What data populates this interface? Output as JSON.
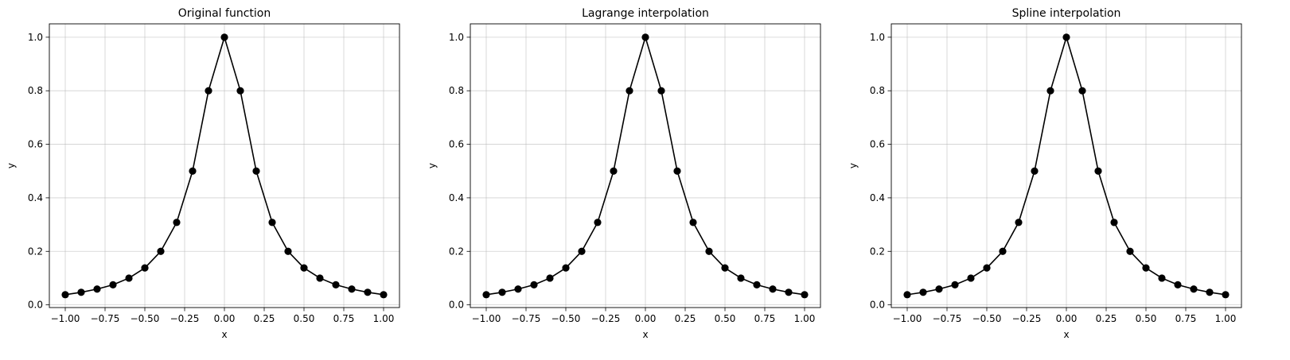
{
  "chart_data": [
    {
      "type": "line",
      "title": "Original function",
      "xlabel": "x",
      "ylabel": "y",
      "xlim": [
        -1.1,
        1.1
      ],
      "ylim": [
        -0.01,
        1.05
      ],
      "xticks": [
        -1.0,
        -0.75,
        -0.5,
        -0.25,
        0.0,
        0.25,
        0.5,
        0.75,
        1.0
      ],
      "xtick_labels": [
        "−1.00",
        "−0.75",
        "−0.50",
        "−0.25",
        "0.00",
        "0.25",
        "0.50",
        "0.75",
        "1.00"
      ],
      "yticks": [
        0.0,
        0.2,
        0.4,
        0.6,
        0.8,
        1.0
      ],
      "ytick_labels": [
        "0.0",
        "0.2",
        "0.4",
        "0.6",
        "0.8",
        "1.0"
      ],
      "grid": true,
      "line_color": "#000000",
      "marker": "circle",
      "x": [
        -1.0,
        -0.9,
        -0.8,
        -0.7,
        -0.6,
        -0.5,
        -0.4,
        -0.3,
        -0.2,
        -0.1,
        0.0,
        0.1,
        0.2,
        0.3,
        0.4,
        0.5,
        0.6,
        0.7,
        0.8,
        0.9,
        1.0
      ],
      "y": [
        0.038,
        0.047,
        0.059,
        0.075,
        0.1,
        0.138,
        0.2,
        0.308,
        0.5,
        0.8,
        1.0,
        0.8,
        0.5,
        0.308,
        0.2,
        0.138,
        0.1,
        0.075,
        0.059,
        0.047,
        0.038
      ]
    },
    {
      "type": "line",
      "title": "Lagrange interpolation",
      "xlabel": "x",
      "ylabel": "y",
      "xlim": [
        -1.1,
        1.1
      ],
      "ylim": [
        -0.01,
        1.05
      ],
      "xticks": [
        -1.0,
        -0.75,
        -0.5,
        -0.25,
        0.0,
        0.25,
        0.5,
        0.75,
        1.0
      ],
      "xtick_labels": [
        "−1.00",
        "−0.75",
        "−0.50",
        "−0.25",
        "0.00",
        "0.25",
        "0.50",
        "0.75",
        "1.00"
      ],
      "yticks": [
        0.0,
        0.2,
        0.4,
        0.6,
        0.8,
        1.0
      ],
      "ytick_labels": [
        "0.0",
        "0.2",
        "0.4",
        "0.6",
        "0.8",
        "1.0"
      ],
      "grid": true,
      "line_color": "#000000",
      "marker": "circle",
      "x": [
        -1.0,
        -0.9,
        -0.8,
        -0.7,
        -0.6,
        -0.5,
        -0.4,
        -0.3,
        -0.2,
        -0.1,
        0.0,
        0.1,
        0.2,
        0.3,
        0.4,
        0.5,
        0.6,
        0.7,
        0.8,
        0.9,
        1.0
      ],
      "y": [
        0.038,
        0.047,
        0.059,
        0.075,
        0.1,
        0.138,
        0.2,
        0.308,
        0.5,
        0.8,
        1.0,
        0.8,
        0.5,
        0.308,
        0.2,
        0.138,
        0.1,
        0.075,
        0.059,
        0.047,
        0.038
      ]
    },
    {
      "type": "line",
      "title": "Spline interpolation",
      "xlabel": "x",
      "ylabel": "y",
      "xlim": [
        -1.1,
        1.1
      ],
      "ylim": [
        -0.01,
        1.05
      ],
      "xticks": [
        -1.0,
        -0.75,
        -0.5,
        -0.25,
        0.0,
        0.25,
        0.5,
        0.75,
        1.0
      ],
      "xtick_labels": [
        "−1.00",
        "−0.75",
        "−0.50",
        "−0.25",
        "0.00",
        "0.25",
        "0.50",
        "0.75",
        "1.00"
      ],
      "yticks": [
        0.0,
        0.2,
        0.4,
        0.6,
        0.8,
        1.0
      ],
      "ytick_labels": [
        "0.0",
        "0.2",
        "0.4",
        "0.6",
        "0.8",
        "1.0"
      ],
      "grid": true,
      "line_color": "#000000",
      "marker": "circle",
      "x": [
        -1.0,
        -0.9,
        -0.8,
        -0.7,
        -0.6,
        -0.5,
        -0.4,
        -0.3,
        -0.2,
        -0.1,
        0.0,
        0.1,
        0.2,
        0.3,
        0.4,
        0.5,
        0.6,
        0.7,
        0.8,
        0.9,
        1.0
      ],
      "y": [
        0.038,
        0.047,
        0.059,
        0.075,
        0.1,
        0.138,
        0.2,
        0.308,
        0.5,
        0.8,
        1.0,
        0.8,
        0.5,
        0.308,
        0.2,
        0.138,
        0.1,
        0.075,
        0.059,
        0.047,
        0.038
      ]
    }
  ]
}
